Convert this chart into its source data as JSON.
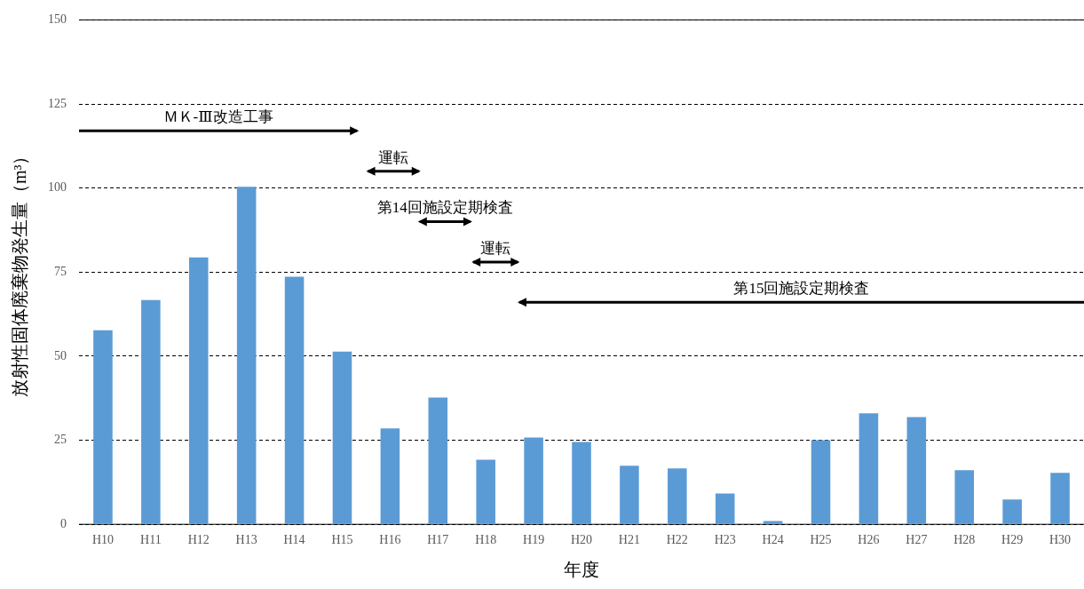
{
  "chart_data": {
    "type": "bar",
    "xlabel": "年度",
    "ylabel": "放射性固体廃棄物発生量（m³）",
    "categories": [
      "H10",
      "H11",
      "H12",
      "H13",
      "H14",
      "H15",
      "H16",
      "H17",
      "H18",
      "H19",
      "H20",
      "H21",
      "H22",
      "H23",
      "H24",
      "H25",
      "H26",
      "H27",
      "H28",
      "H29",
      "H30"
    ],
    "values": [
      57.7,
      66.7,
      79.4,
      100.4,
      73.6,
      51.4,
      28.5,
      37.7,
      19.2,
      25.8,
      24.5,
      17.4,
      16.6,
      9.2,
      1.0,
      25.0,
      33.0,
      31.9,
      16.1,
      7.4,
      15.3
    ],
    "color": "#5b9bd5",
    "ylim": [
      0,
      150
    ],
    "yticks": [
      0,
      25,
      50,
      75,
      100,
      125,
      150
    ],
    "grid": "y",
    "annotations": [
      "ＭＫ-Ⅲ改造工事",
      "運転",
      "第14回施設定期検査",
      "運転",
      "第15回施設定期検査"
    ]
  }
}
